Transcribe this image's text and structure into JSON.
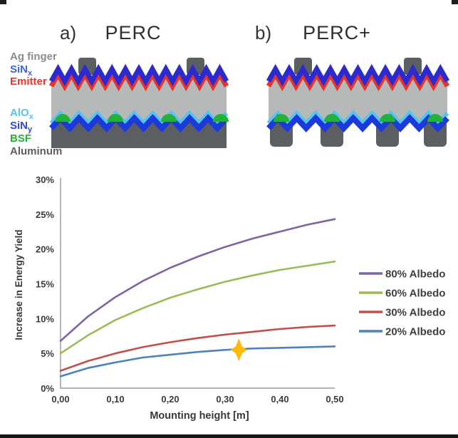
{
  "figure": {
    "panel_a_index": "a)",
    "panel_a_title": "PERC",
    "panel_b_index": "b)",
    "panel_b_title": "PERC+",
    "layer_labels": [
      {
        "text": "Ag finger",
        "sub": "",
        "color": "#8C8C8C"
      },
      {
        "text": "SiN",
        "sub": "x",
        "color": "#3C62E9"
      },
      {
        "text": "Emitter",
        "sub": "",
        "color": "#EB352C"
      },
      {
        "text": "AlO",
        "sub": "x",
        "color": "#56C3F2"
      },
      {
        "text": "SiN",
        "sub": "y",
        "color": "#2B49DF"
      },
      {
        "text": "BSF",
        "sub": "",
        "color": "#23B239"
      },
      {
        "text": "Aluminum",
        "sub": "",
        "color": "#5E5E5E"
      }
    ],
    "materials": {
      "metal": "#5C5F62",
      "bulk": "#B7B9B8",
      "sin_x": "#2A2ACF",
      "emitter": "#E5332E",
      "alo_x": "#56C3F2",
      "sin_y": "#1C39DB",
      "bsf": "#23B239"
    }
  },
  "chart_data": {
    "type": "line",
    "title": "",
    "xlabel": "Mounting height [m]",
    "ylabel": "Increase in Energy Yield",
    "x_ticks": [
      "0,00",
      "0,10",
      "0,20",
      "0,30",
      "0,40",
      "0,50"
    ],
    "y_ticks": [
      "0%",
      "5%",
      "10%",
      "15%",
      "20%",
      "25%",
      "30%"
    ],
    "xlim": [
      0,
      0.5
    ],
    "ylim": [
      0,
      30
    ],
    "grid": false,
    "legend_position": "right",
    "x": [
      0,
      0.05,
      0.1,
      0.15,
      0.2,
      0.25,
      0.3,
      0.35,
      0.4,
      0.45,
      0.5
    ],
    "series": [
      {
        "name": "80% Albedo",
        "color": "#8064A2",
        "values": [
          6.8,
          10.3,
          13.1,
          15.4,
          17.3,
          18.9,
          20.3,
          21.5,
          22.5,
          23.5,
          24.3
        ]
      },
      {
        "name": "60% Albedo",
        "color": "#9BBB59",
        "values": [
          5.0,
          7.6,
          9.8,
          11.5,
          13.0,
          14.2,
          15.3,
          16.2,
          17.0,
          17.6,
          18.2
        ]
      },
      {
        "name": "30% Albedo",
        "color": "#C0504D",
        "values": [
          2.5,
          3.9,
          5.0,
          5.9,
          6.6,
          7.2,
          7.7,
          8.1,
          8.5,
          8.8,
          9.0
        ]
      },
      {
        "name": "20% Albedo",
        "color": "#4F81BD",
        "values": [
          1.7,
          2.9,
          3.7,
          4.4,
          4.8,
          5.2,
          5.5,
          5.7,
          5.8,
          5.9,
          6.0
        ]
      }
    ],
    "marker": {
      "shape": "four-point-star",
      "color": "#FFB900",
      "x": 0.325,
      "y": 5.5
    }
  }
}
